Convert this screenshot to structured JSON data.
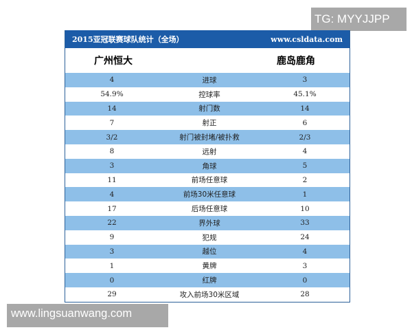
{
  "watermarks": {
    "top": "TG: MYYJJPP",
    "bottom": "www.lingsuanwang.com"
  },
  "header": {
    "title": "2015亚冠联赛球队统计（全场）",
    "site": "www.csldata.com"
  },
  "teams": {
    "home": "广州恒大",
    "away": "鹿岛鹿角"
  },
  "rows": [
    {
      "home": "4",
      "stat": "进球",
      "away": "3"
    },
    {
      "home": "54.9%",
      "stat": "控球率",
      "away": "45.1%"
    },
    {
      "home": "14",
      "stat": "射门数",
      "away": "14"
    },
    {
      "home": "7",
      "stat": "射正",
      "away": "6"
    },
    {
      "home": "3/2",
      "stat": "射门被封堵/被扑救",
      "away": "2/3"
    },
    {
      "home": "8",
      "stat": "远射",
      "away": "4"
    },
    {
      "home": "3",
      "stat": "角球",
      "away": "5"
    },
    {
      "home": "11",
      "stat": "前场任意球",
      "away": "2"
    },
    {
      "home": "4",
      "stat": "前场30米任意球",
      "away": "1"
    },
    {
      "home": "17",
      "stat": "后场任意球",
      "away": "10"
    },
    {
      "home": "22",
      "stat": "界外球",
      "away": "33"
    },
    {
      "home": "9",
      "stat": "犯规",
      "away": "24"
    },
    {
      "home": "3",
      "stat": "越位",
      "away": "4"
    },
    {
      "home": "1",
      "stat": "黄牌",
      "away": "3"
    },
    {
      "home": "0",
      "stat": "红牌",
      "away": "0"
    },
    {
      "home": "29",
      "stat": "攻入前场30米区域",
      "away": "28"
    }
  ]
}
